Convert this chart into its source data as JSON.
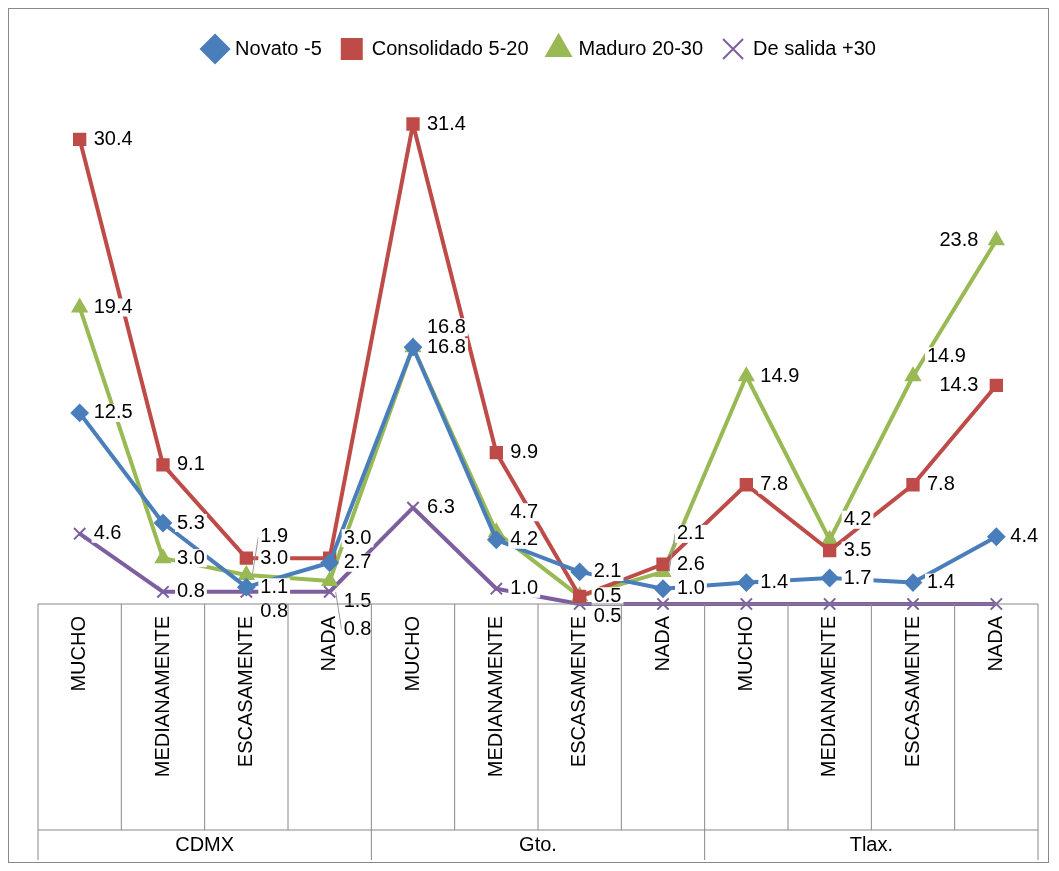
{
  "chart_data": {
    "type": "line",
    "categories": [
      "MUCHO",
      "MEDIANAMENTE",
      "ESCASAMENTE",
      "NADA",
      "MUCHO",
      "MEDIANAMENTE",
      "ESCASAMENTE",
      "NADA",
      "MUCHO",
      "MEDIANAMENTE",
      "ESCASAMENTE",
      "NADA"
    ],
    "annotations": [
      "CDMX",
      "Gto.",
      "Tlax."
    ],
    "legend": "top",
    "grid": false,
    "series": [
      {
        "name": "Novato -5",
        "color": "#4a7ebb",
        "marker": "diamond",
        "values": [
          12.5,
          5.3,
          1.1,
          2.7,
          16.8,
          4.2,
          2.1,
          1.0,
          1.4,
          1.7,
          1.4,
          4.4
        ],
        "value_labels": [
          "12.5",
          "5.3",
          "1.1",
          "2.7",
          "16.8",
          "4.2",
          "2.1",
          "1.0",
          "1.4",
          "1.7",
          "1.4",
          "4.4"
        ]
      },
      {
        "name": "Consolidado 5-20",
        "color": "#be4b48",
        "marker": "square",
        "values": [
          30.4,
          9.1,
          3.0,
          3.0,
          31.4,
          9.9,
          0.5,
          2.6,
          7.8,
          3.5,
          7.8,
          14.3
        ],
        "value_labels": [
          "30.4",
          "9.1",
          "3.0",
          "3.0",
          "31.4",
          "9.9",
          "0.5",
          "2.6",
          "7.8",
          "3.5",
          "7.8",
          "14.3"
        ]
      },
      {
        "name": "Maduro 20-30",
        "color": "#98b954",
        "marker": "triangle",
        "values": [
          19.4,
          3.0,
          1.9,
          1.5,
          16.8,
          4.7,
          0.5,
          2.1,
          14.9,
          4.2,
          14.9,
          23.8
        ],
        "value_labels": [
          "19.4",
          "3.0",
          "1.9",
          "1.5",
          "16.8",
          "4.7",
          "0.5",
          "2.1",
          "14.9",
          "4.2",
          "14.9",
          "23.8"
        ]
      },
      {
        "name": "De salida +30",
        "color": "#7d5fa0",
        "marker": "cross",
        "values": [
          4.6,
          0.8,
          0.8,
          0.8,
          6.3,
          1.0,
          0,
          0,
          0,
          0,
          0,
          0
        ],
        "value_labels": [
          "4.6",
          "0.8",
          "0.8",
          "0.8",
          "6.3",
          "1.0",
          null,
          null,
          null,
          null,
          null,
          null
        ]
      }
    ]
  }
}
